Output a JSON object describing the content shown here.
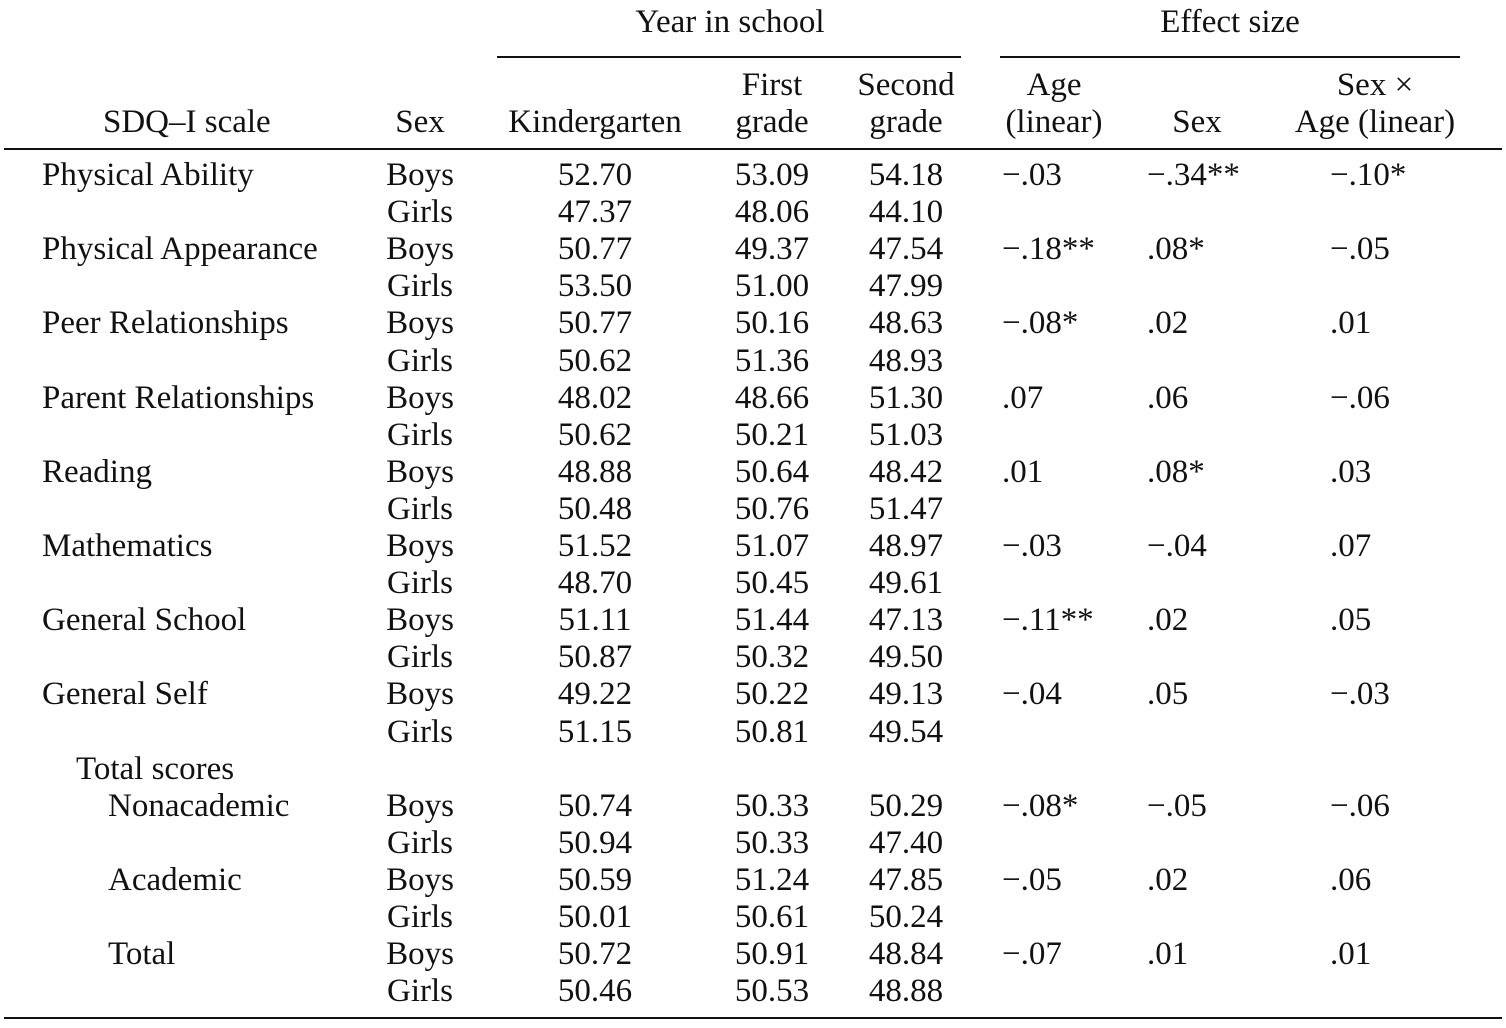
{
  "header": {
    "group_year": "Year in school",
    "group_effect": "Effect size",
    "scale": "SDQ–I scale",
    "sex": "Sex",
    "kindergarten": "Kindergarten",
    "first_l1": "First",
    "first_l2": "grade",
    "second_l1": "Second",
    "second_l2": "grade",
    "age_l1": "Age",
    "age_l2": "(linear)",
    "es_sex": "Sex",
    "sexage_l1": "Sex ×",
    "sexage_l2": "Age (linear)"
  },
  "rows": [
    {
      "scale": "Physical Ability",
      "sex": "Boys",
      "k": "52.70",
      "g1": "53.09",
      "g2": "54.18",
      "age": "−.03",
      "esex": "−.34**",
      "sxa": "−.10*"
    },
    {
      "scale": "",
      "sex": "Girls",
      "k": "47.37",
      "g1": "48.06",
      "g2": "44.10",
      "age": "",
      "esex": "",
      "sxa": ""
    },
    {
      "scale": "Physical Appearance",
      "sex": "Boys",
      "k": "50.77",
      "g1": "49.37",
      "g2": "47.54",
      "age": "−.18**",
      "esex": ".08*",
      "sxa": "−.05"
    },
    {
      "scale": "",
      "sex": "Girls",
      "k": "53.50",
      "g1": "51.00",
      "g2": "47.99",
      "age": "",
      "esex": "",
      "sxa": ""
    },
    {
      "scale": "Peer Relationships",
      "sex": "Boys",
      "k": "50.77",
      "g1": "50.16",
      "g2": "48.63",
      "age": "−.08*",
      "esex": ".02",
      "sxa": ".01"
    },
    {
      "scale": "",
      "sex": "Girls",
      "k": "50.62",
      "g1": "51.36",
      "g2": "48.93",
      "age": "",
      "esex": "",
      "sxa": ""
    },
    {
      "scale": "Parent Relationships",
      "sex": "Boys",
      "k": "48.02",
      "g1": "48.66",
      "g2": "51.30",
      "age": ".07",
      "esex": ".06",
      "sxa": "−.06"
    },
    {
      "scale": "",
      "sex": "Girls",
      "k": "50.62",
      "g1": "50.21",
      "g2": "51.03",
      "age": "",
      "esex": "",
      "sxa": ""
    },
    {
      "scale": "Reading",
      "sex": "Boys",
      "k": "48.88",
      "g1": "50.64",
      "g2": "48.42",
      "age": ".01",
      "esex": ".08*",
      "sxa": ".03"
    },
    {
      "scale": "",
      "sex": "Girls",
      "k": "50.48",
      "g1": "50.76",
      "g2": "51.47",
      "age": "",
      "esex": "",
      "sxa": ""
    },
    {
      "scale": "Mathematics",
      "sex": "Boys",
      "k": "51.52",
      "g1": "51.07",
      "g2": "48.97",
      "age": "−.03",
      "esex": "−.04",
      "sxa": ".07"
    },
    {
      "scale": "",
      "sex": "Girls",
      "k": "48.70",
      "g1": "50.45",
      "g2": "49.61",
      "age": "",
      "esex": "",
      "sxa": ""
    },
    {
      "scale": "General School",
      "sex": "Boys",
      "k": "51.11",
      "g1": "51.44",
      "g2": "47.13",
      "age": "−.11**",
      "esex": ".02",
      "sxa": ".05"
    },
    {
      "scale": "",
      "sex": "Girls",
      "k": "50.87",
      "g1": "50.32",
      "g2": "49.50",
      "age": "",
      "esex": "",
      "sxa": ""
    },
    {
      "scale": "General Self",
      "sex": "Boys",
      "k": "49.22",
      "g1": "50.22",
      "g2": "49.13",
      "age": "−.04",
      "esex": ".05",
      "sxa": "−.03"
    },
    {
      "scale": "",
      "sex": "Girls",
      "k": "51.15",
      "g1": "50.81",
      "g2": "49.54",
      "age": "",
      "esex": "",
      "sxa": ""
    },
    {
      "scale": "Total scores",
      "sex": "",
      "k": "",
      "g1": "",
      "g2": "",
      "age": "",
      "esex": "",
      "sxa": "",
      "indent": 1
    },
    {
      "scale": "Nonacademic",
      "sex": "Boys",
      "k": "50.74",
      "g1": "50.33",
      "g2": "50.29",
      "age": "−.08*",
      "esex": "−.05",
      "sxa": "−.06",
      "indent": 2
    },
    {
      "scale": "",
      "sex": "Girls",
      "k": "50.94",
      "g1": "50.33",
      "g2": "47.40",
      "age": "",
      "esex": "",
      "sxa": ""
    },
    {
      "scale": "Academic",
      "sex": "Boys",
      "k": "50.59",
      "g1": "51.24",
      "g2": "47.85",
      "age": "−.05",
      "esex": ".02",
      "sxa": ".06",
      "indent": 2
    },
    {
      "scale": "",
      "sex": "Girls",
      "k": "50.01",
      "g1": "50.61",
      "g2": "50.24",
      "age": "",
      "esex": "",
      "sxa": ""
    },
    {
      "scale": "Total",
      "sex": "Boys",
      "k": "50.72",
      "g1": "50.91",
      "g2": "48.84",
      "age": "−.07",
      "esex": ".01",
      "sxa": ".01",
      "indent": 2
    },
    {
      "scale": "",
      "sex": "Girls",
      "k": "50.46",
      "g1": "50.53",
      "g2": "48.88",
      "age": "",
      "esex": "",
      "sxa": ""
    }
  ]
}
